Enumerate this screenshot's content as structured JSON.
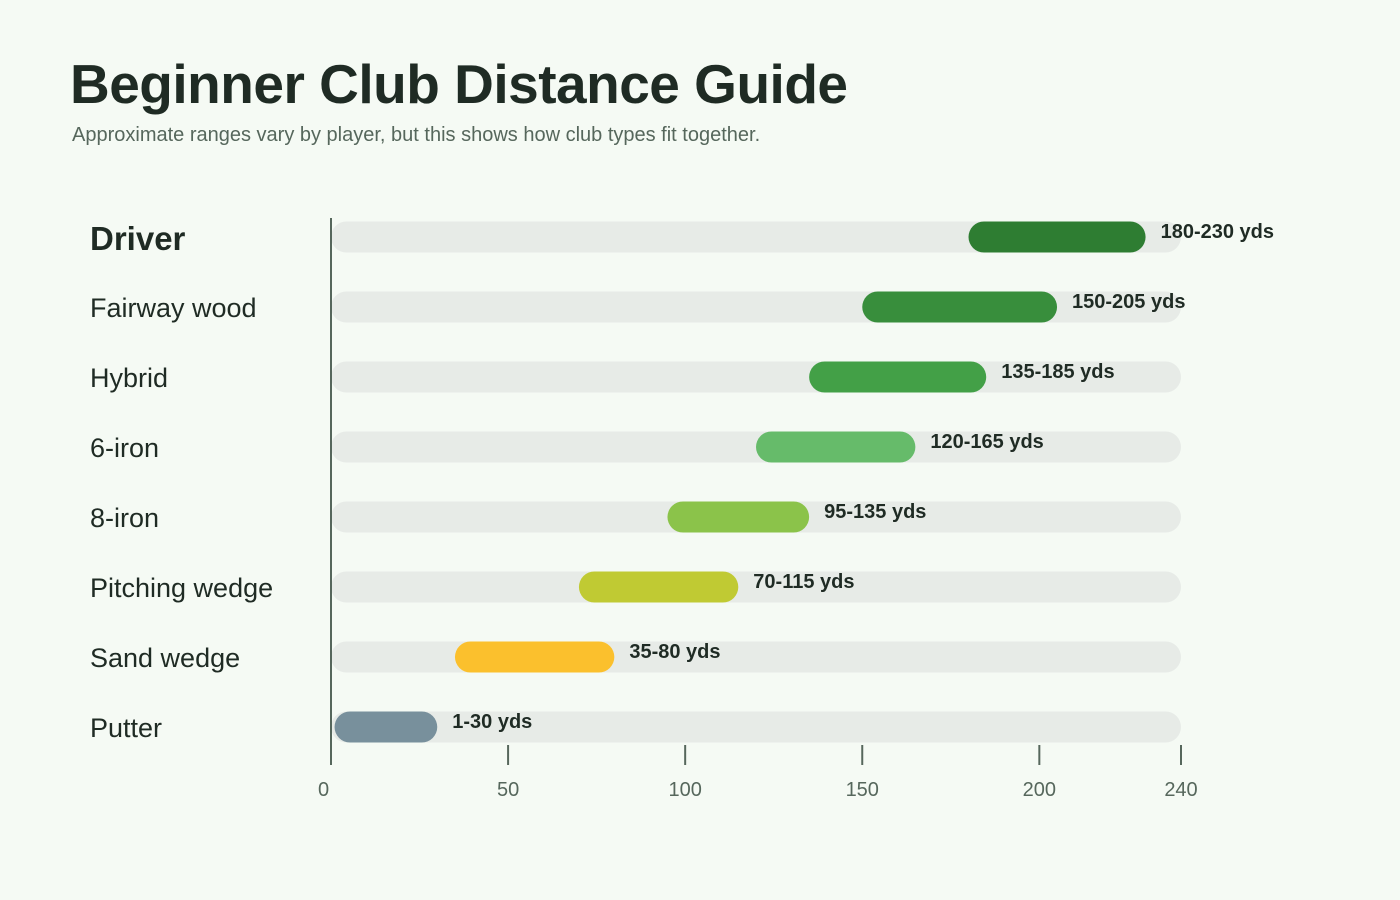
{
  "header": {
    "title": "Beginner Club Distance Guide",
    "subtitle": "Approximate ranges vary by player, but this shows how club types fit together."
  },
  "chart_data": {
    "type": "bar",
    "orientation": "horizontal",
    "range_bars": true,
    "title": "Beginner Club Distance Guide",
    "subtitle": "Approximate ranges vary by player, but this shows how club types fit together.",
    "xlabel": "",
    "ylabel": "",
    "xlim": [
      0,
      240
    ],
    "x_ticks": [
      0,
      50,
      100,
      150,
      200,
      240
    ],
    "grid": false,
    "legend": "none",
    "highlight": "Driver",
    "categories": [
      "Driver",
      "Fairway wood",
      "Hybrid",
      "6-iron",
      "8-iron",
      "Pitching wedge",
      "Sand wedge",
      "Putter"
    ],
    "ranges": [
      {
        "club": "Driver",
        "min": 180,
        "max": 230,
        "label": "180-230 yds",
        "color": "#2e7d32"
      },
      {
        "club": "Fairway wood",
        "min": 150,
        "max": 205,
        "label": "150-205 yds",
        "color": "#388e3c"
      },
      {
        "club": "Hybrid",
        "min": 135,
        "max": 185,
        "label": "135-185 yds",
        "color": "#43a047"
      },
      {
        "club": "6-iron",
        "min": 120,
        "max": 165,
        "label": "120-165 yds",
        "color": "#66bb6a"
      },
      {
        "club": "8-iron",
        "min": 95,
        "max": 135,
        "label": "95-135 yds",
        "color": "#8bc34a"
      },
      {
        "club": "Pitching wedge",
        "min": 70,
        "max": 115,
        "label": "70-115 yds",
        "color": "#c0ca33"
      },
      {
        "club": "Sand wedge",
        "min": 35,
        "max": 80,
        "label": "35-80 yds",
        "color": "#fbc02d"
      },
      {
        "club": "Putter",
        "min": 1,
        "max": 30,
        "label": "1-30 yds",
        "color": "#78909c"
      }
    ],
    "colors": {
      "track": "#e7ebe7",
      "axis": "#56675c"
    }
  }
}
